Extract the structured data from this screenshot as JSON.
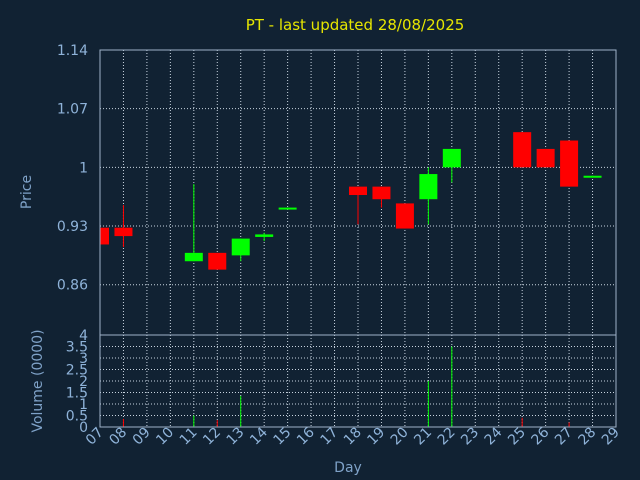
{
  "chart_data": {
    "type": "candlestick",
    "title": "PT - last updated 28/08/2025",
    "xlabel": "Day",
    "ylabel": "Price",
    "volume_label": "Volume (0000)",
    "x_ticks": [
      "07",
      "08",
      "09",
      "10",
      "11",
      "12",
      "13",
      "14",
      "15",
      "16",
      "17",
      "18",
      "19",
      "20",
      "21",
      "22",
      "23",
      "24",
      "25",
      "26",
      "27",
      "28",
      "29"
    ],
    "price_ticks": [
      "0.86",
      "0.93",
      "1",
      "1.07",
      "1.14"
    ],
    "price_ylim": [
      0.8,
      1.14
    ],
    "volume_ticks": [
      "0",
      "0.5",
      "1",
      "1.5",
      "2",
      "2.5",
      "3",
      "3.5",
      "4"
    ],
    "volume_ylim": [
      0,
      4
    ],
    "grid": true,
    "colors": {
      "up": "#00ff00",
      "down": "#ff0000",
      "background": "#112233"
    },
    "candles": [
      {
        "day": "07",
        "open": 0.928,
        "high": 0.928,
        "low": 0.908,
        "close": 0.908,
        "volume": 0
      },
      {
        "day": "08",
        "open": 0.928,
        "high": 0.955,
        "low": 0.905,
        "close": 0.918,
        "volume": 0.35
      },
      {
        "day": "11",
        "open": 0.888,
        "high": 0.98,
        "low": 0.888,
        "close": 0.898,
        "volume": 0.5
      },
      {
        "day": "12",
        "open": 0.898,
        "high": 0.898,
        "low": 0.878,
        "close": 0.878,
        "volume": 0.3
      },
      {
        "day": "13",
        "open": 0.895,
        "high": 0.915,
        "low": 0.888,
        "close": 0.915,
        "volume": 1.35
      },
      {
        "day": "14",
        "open": 0.917,
        "high": 0.922,
        "low": 0.912,
        "close": 0.92,
        "volume": 0
      },
      {
        "day": "15",
        "open": 0.951,
        "high": 0.952,
        "low": 0.951,
        "close": 0.952,
        "volume": 0
      },
      {
        "day": "18",
        "open": 0.977,
        "high": 0.977,
        "low": 0.932,
        "close": 0.967,
        "volume": 0
      },
      {
        "day": "19",
        "open": 0.977,
        "high": 0.977,
        "low": 0.952,
        "close": 0.962,
        "volume": 0
      },
      {
        "day": "20",
        "open": 0.957,
        "high": 0.957,
        "low": 0.927,
        "close": 0.927,
        "volume": 0
      },
      {
        "day": "21",
        "open": 0.962,
        "high": 1.0,
        "low": 0.932,
        "close": 0.992,
        "volume": 2.0
      },
      {
        "day": "22",
        "open": 1.0,
        "high": 1.022,
        "low": 0.982,
        "close": 1.022,
        "volume": 3.5
      },
      {
        "day": "25",
        "open": 1.042,
        "high": 1.042,
        "low": 1.0,
        "close": 1.0,
        "volume": 0.4
      },
      {
        "day": "26",
        "open": 1.022,
        "high": 1.022,
        "low": 1.0,
        "close": 1.0,
        "volume": 0
      },
      {
        "day": "27",
        "open": 1.032,
        "high": 1.032,
        "low": 0.977,
        "close": 0.977,
        "volume": 0.2
      },
      {
        "day": "28",
        "open": 0.988,
        "high": 0.99,
        "low": 0.988,
        "close": 0.99,
        "volume": 0
      }
    ]
  }
}
